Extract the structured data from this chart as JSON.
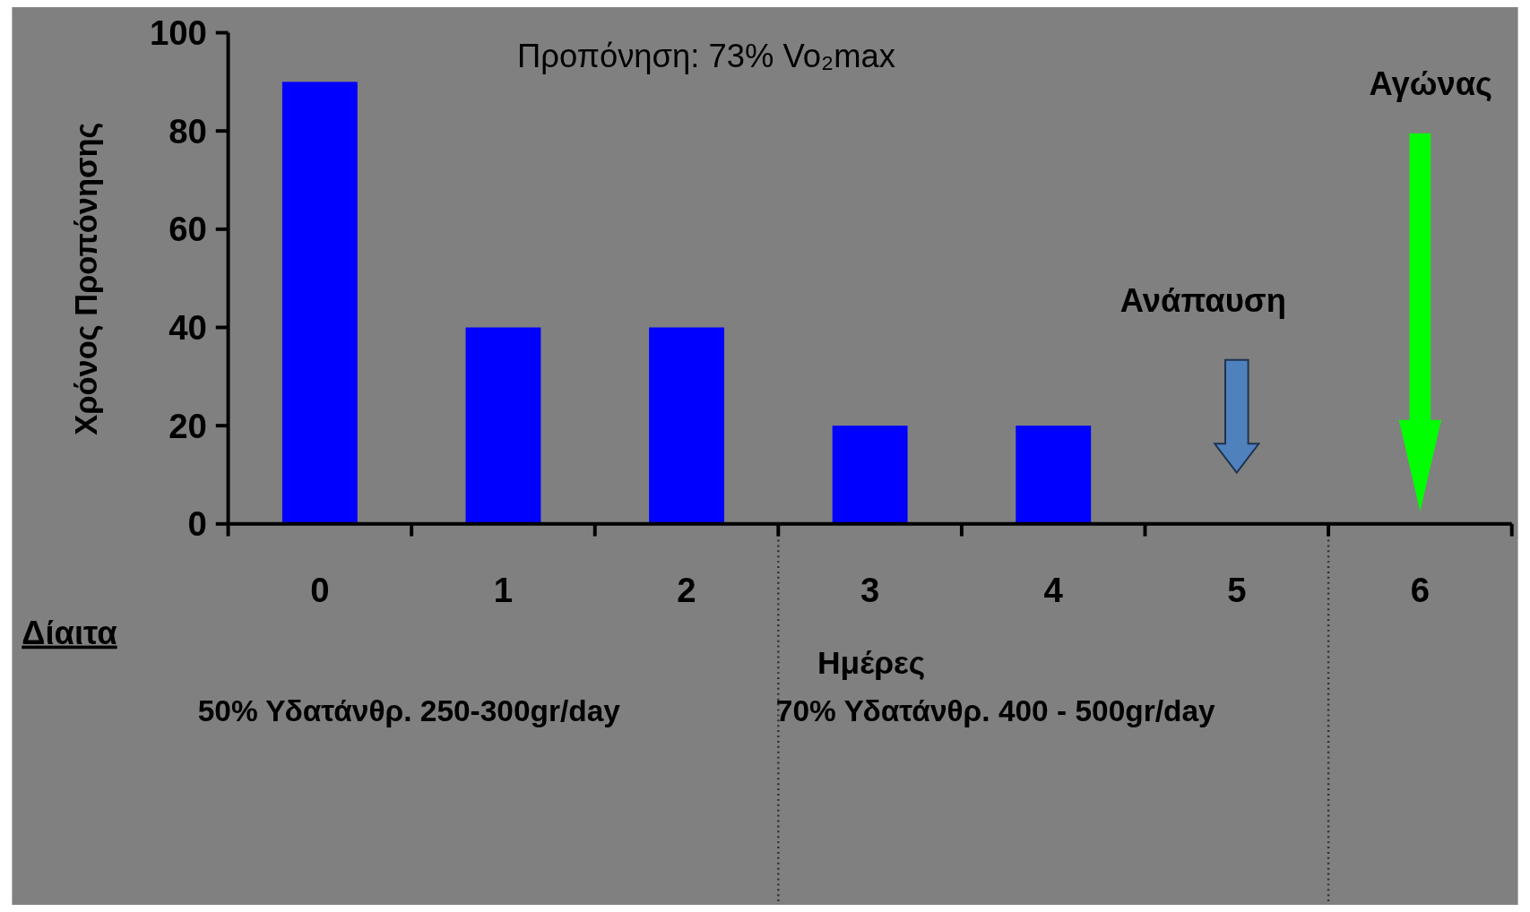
{
  "chart_data": {
    "type": "bar",
    "title": "Προπόνηση: 73% Vo₂max",
    "xlabel": "Ημέρες",
    "ylabel": "Χρόνος Προπόνησης",
    "categories": [
      "0",
      "1",
      "2",
      "3",
      "4",
      "5",
      "6"
    ],
    "values": [
      90,
      40,
      40,
      20,
      20,
      null,
      null
    ],
    "color": "#0000ff",
    "ylim": [
      0,
      100
    ],
    "yticks": [
      0,
      20,
      40,
      60,
      80,
      100
    ],
    "annotations": [
      "Ανάπαυση",
      "Αγώνας",
      "Δίαιτα",
      "50% Υδατάνθρ. 250-300gr/day",
      "70% Υδατάνθρ. 400 - 500gr/day"
    ]
  }
}
